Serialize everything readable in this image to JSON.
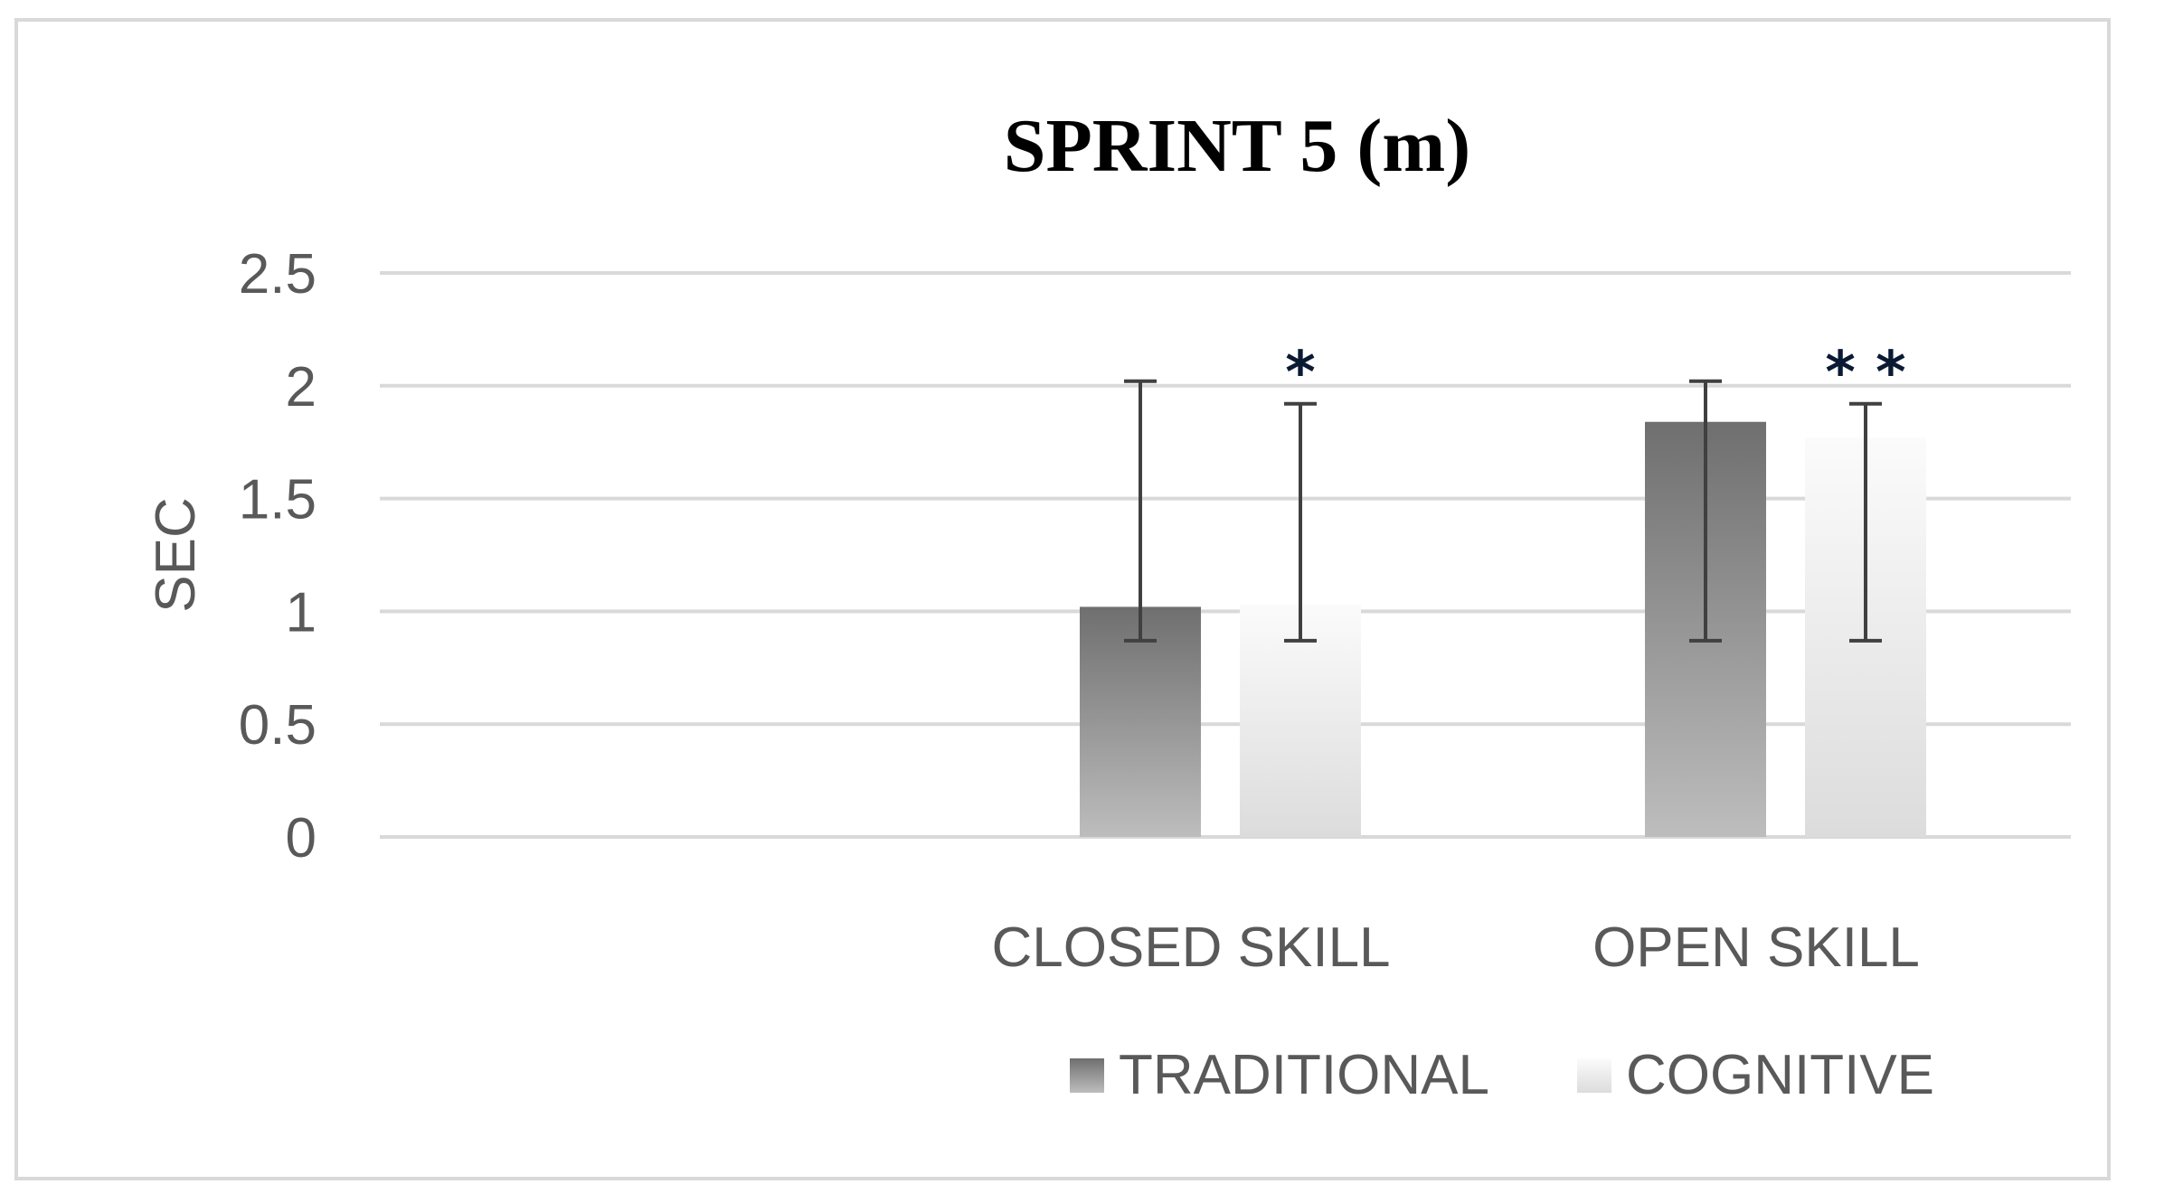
{
  "chart_data": {
    "type": "bar",
    "title": "SPRINT 5 (m)",
    "xlabel": "",
    "ylabel": "SEC",
    "ylim": [
      0,
      2.5
    ],
    "yticks": [
      "0",
      "0.5",
      "1",
      "1.5",
      "2",
      "2.5"
    ],
    "grid": true,
    "legend_position": "bottom",
    "categories": [
      "CLOSED SKILL",
      "OPEN SKILL"
    ],
    "series": [
      {
        "name": "TRADITIONAL",
        "values": [
          1.02,
          1.84
        ],
        "error_low": [
          0.87,
          0.87
        ],
        "error_high": [
          2.02,
          2.02
        ],
        "color": "#808080"
      },
      {
        "name": "COGNITIVE",
        "values": [
          1.03,
          1.77
        ],
        "error_low": [
          0.87,
          0.87
        ],
        "error_high": [
          1.92,
          1.92
        ],
        "color": "#e6e6e6"
      }
    ],
    "annotations": [
      {
        "category": "CLOSED SKILL",
        "series": "COGNITIVE",
        "text": "*"
      },
      {
        "category": "OPEN SKILL",
        "series": "COGNITIVE",
        "text": "* *"
      }
    ]
  }
}
